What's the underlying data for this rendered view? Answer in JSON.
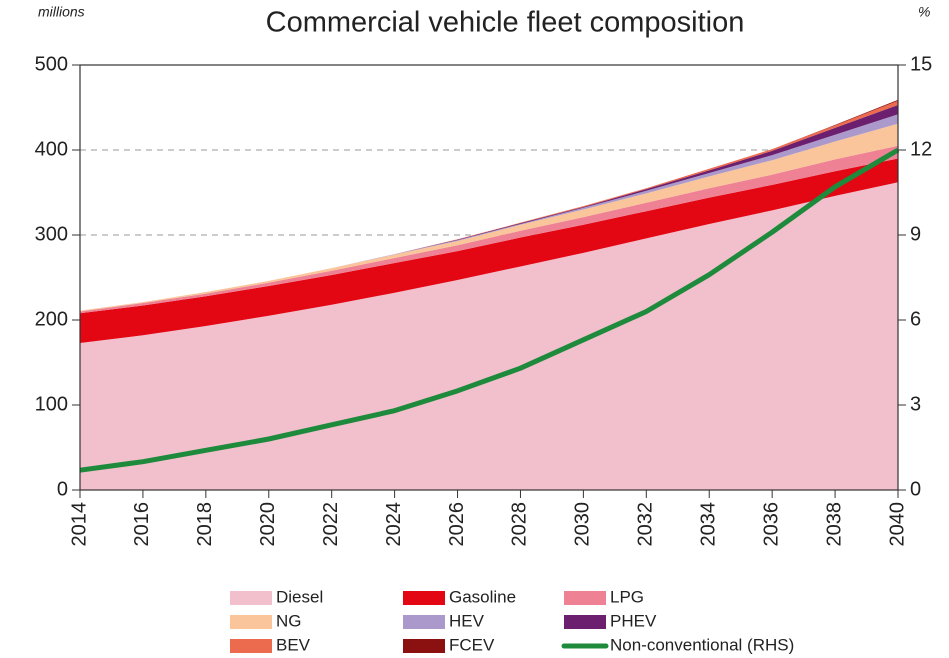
{
  "chart_data": {
    "type": "stacked_area",
    "title": "Commercial vehicle fleet composition",
    "y_axis_label": "millions",
    "y2_axis_label": "%",
    "x": [
      2014,
      2016,
      2018,
      2020,
      2022,
      2024,
      2026,
      2028,
      2030,
      2032,
      2034,
      2036,
      2038,
      2040
    ],
    "xlim": [
      2014,
      2040
    ],
    "xticks": [
      2014,
      2016,
      2018,
      2020,
      2022,
      2024,
      2026,
      2028,
      2030,
      2032,
      2034,
      2036,
      2038,
      2040
    ],
    "ylim": [
      0,
      500
    ],
    "yticks": [
      0,
      100,
      200,
      300,
      400,
      500
    ],
    "y2lim": [
      0,
      15
    ],
    "y2ticks": [
      0,
      3,
      6,
      9,
      12,
      15
    ],
    "grid": true,
    "series": [
      {
        "name": "Diesel",
        "color": "#f2bfcc",
        "values": [
          173,
          182,
          193,
          205,
          218,
          232,
          247,
          263,
          279,
          296,
          313,
          329,
          346,
          362
        ]
      },
      {
        "name": "Gasoline",
        "color": "#e30613",
        "values": [
          35,
          35,
          35,
          35,
          35,
          35,
          34,
          34,
          33,
          32,
          31,
          30,
          29,
          28
        ]
      },
      {
        "name": "LPG",
        "color": "#ee8294",
        "values": [
          2,
          3,
          3,
          4,
          5,
          6,
          7,
          8,
          9,
          10,
          11,
          12,
          14,
          15
        ]
      },
      {
        "name": "NG",
        "color": "#fbc59b",
        "values": [
          1,
          1,
          2,
          2,
          3,
          4,
          5,
          7,
          9,
          11,
          14,
          17,
          21,
          26
        ]
      },
      {
        "name": "HEV",
        "color": "#ab99cc",
        "values": [
          0,
          0,
          0,
          0,
          0,
          0.5,
          1,
          1,
          2,
          3,
          4,
          6,
          8,
          11
        ]
      },
      {
        "name": "PHEV",
        "color": "#6b1f6e",
        "values": [
          0,
          0,
          0,
          0,
          0,
          0,
          0.5,
          1,
          1,
          2,
          3,
          5,
          8,
          11
        ]
      },
      {
        "name": "BEV",
        "color": "#ec6a4e",
        "values": [
          0,
          0,
          0,
          0,
          0,
          0,
          0.5,
          0.5,
          1,
          1,
          2,
          2,
          3,
          5
        ]
      },
      {
        "name": "FCEV",
        "color": "#8b1010",
        "values": [
          0,
          0,
          0,
          0,
          0,
          0,
          0,
          0,
          0,
          0,
          0,
          0,
          0.5,
          1
        ]
      },
      {
        "name": "Non-conventional (RHS)",
        "color": "#1e8a3c",
        "axis": "y2",
        "type": "line",
        "values": [
          0.7,
          1.0,
          1.4,
          1.8,
          2.3,
          2.8,
          3.5,
          4.3,
          5.3,
          6.3,
          7.6,
          9.1,
          10.7,
          12.0
        ]
      }
    ]
  }
}
